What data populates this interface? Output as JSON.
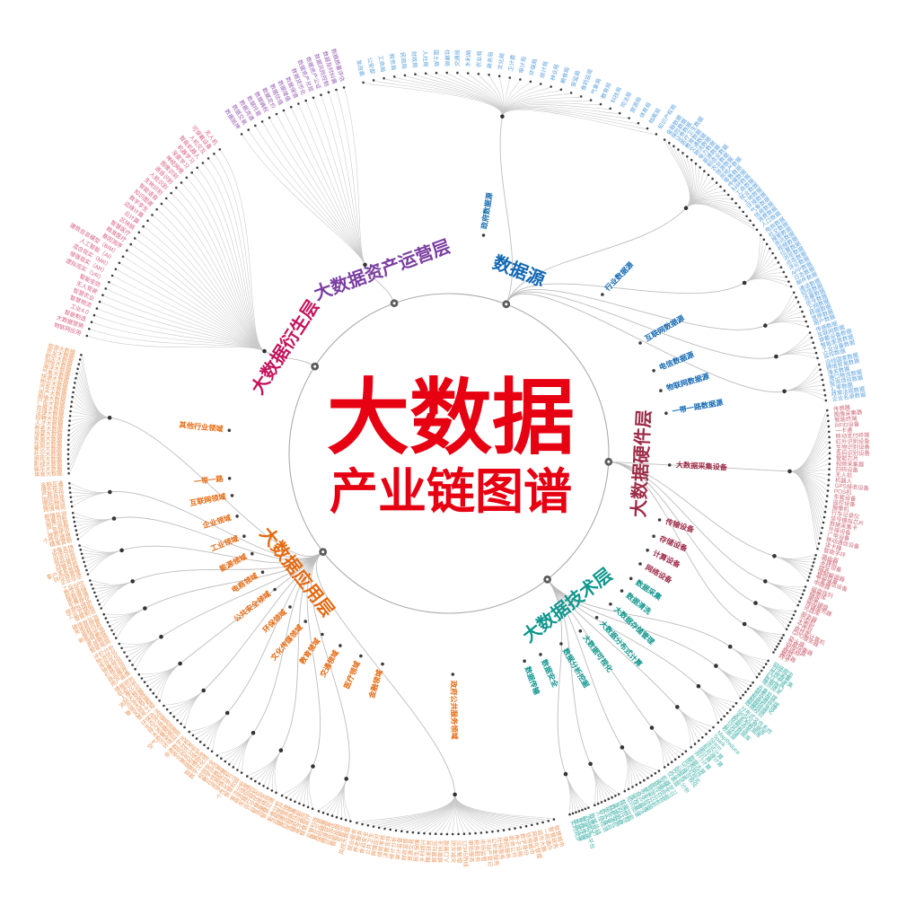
{
  "title": {
    "line1": "大数据",
    "line2": "产业链图谱",
    "color": "#e60012"
  },
  "colors": {
    "link": "#c9c9c9",
    "branch_link": "#bdbdbd",
    "dot": "#3d3d3d",
    "circle": "#ababab",
    "node": "#5c5c5c"
  },
  "branches": [
    {
      "label": "数据源",
      "color": "#1268b3",
      "leaf_color": "#5da2de",
      "node_angle": -69,
      "children": [
        {
          "label": "政府数据源",
          "angle": -81,
          "span": [
            -103,
            -57
          ],
          "leaves": [
            "发改委",
            "公安部",
            "工商局",
            "税务局",
            "民政局",
            "财政局",
            "人社局",
            "国土局",
            "住建局",
            "交通局",
            "水利局",
            "农业局",
            "商务局",
            "文化局",
            "卫计委",
            "审计局",
            "环保局",
            "统计局",
            "林业局",
            "粮食局",
            "安监局",
            "食药监局",
            "气象局",
            "教育局",
            "科技局",
            "司法局",
            "旅游局",
            "体育局",
            "档案局",
            "知识产权局"
          ]
        },
        {
          "label": "行业数据源",
          "angle": -46,
          "span": [
            -55.5,
            -36
          ],
          "leaves": [
            "金融数据",
            "保险数据",
            "证券数据",
            "医疗卫生数据",
            "教育数据",
            "交通数据",
            "物流数据",
            "电力数据",
            "能源数据",
            "制造业数据",
            "农业数据",
            "旅游数据",
            "房地产数据",
            "零售数据",
            "传媒数据",
            "科研数据",
            "工商数据",
            "就业数据",
            "土地数据",
            "环境数据",
            "气象数据",
            "信用数据",
            "消费数据",
            "人口数据"
          ]
        },
        {
          "label": "互联网数据源",
          "angle": -30,
          "span": [
            -35,
            -26
          ],
          "leaves": [
            "电商数据",
            "社交数据",
            "搜索数据",
            "资讯数据",
            "视频数据",
            "位置数据",
            "浏览数据",
            "点击数据",
            "评论数据",
            "APP数据",
            "日志数据",
            "邮件数据"
          ]
        },
        {
          "label": "电信数据源",
          "angle": -22,
          "span": [
            -25,
            -19.5
          ],
          "leaves": [
            "通话数据",
            "短信数据",
            "流量数据",
            "信令数据",
            "上网数据",
            "终端数据",
            "宽带数据",
            "用户数据"
          ]
        },
        {
          "label": "物联网数据源",
          "angle": -16.5,
          "span": [
            -18.5,
            -14.5
          ],
          "leaves": [
            "传感数据",
            "车联网数据",
            "穿戴设备数据",
            "智能家居数据",
            "工业设备数据",
            "监控数据"
          ]
        },
        {
          "label": "一带一路数据源",
          "angle": -10.5,
          "span": [
            -13.5,
            -8
          ],
          "leaves": [
            "沿线国家数据",
            "跨境贸易数据",
            "海关数据",
            "港口物流数据",
            "投资项目数据",
            "汇率数据",
            "政策法规数据",
            "企业名录数据"
          ]
        }
      ]
    },
    {
      "label": "大数据硬件层",
      "color": "#9e2b47",
      "leaf_color": "#cf6a78",
      "node_angle": 3,
      "children": [
        {
          "label": "大数据采集设备",
          "angle": 3,
          "span": [
            -6.5,
            14.5
          ],
          "leaves": [
            "传感器",
            "图像采集器",
            "智能终端",
            "RFID设备",
            "一卡通",
            "移动支付终端",
            "红外识别设备",
            "生物识别设备",
            "条码识别设备",
            "智能芯片",
            "视频采集器",
            "扫码设备",
            "无人机",
            "机器人",
            "GPS接收设备",
            "POS机",
            "车载设备",
            "监控设备",
            "摄像机",
            "行车记录仪",
            "信号模拟芯片",
            "数据采集卡",
            "外接设备",
            "广电设备",
            "移动通信设备",
            "读卡器",
            "智能手环"
          ]
        },
        {
          "label": "传输设备",
          "angle": 17.5,
          "span": [
            15.5,
            19.5
          ],
          "leaves": [
            "路由器",
            "交换机",
            "光纤设备",
            "网关",
            "调制解调器",
            "基站设备",
            "卫星通信设备",
            "中继器"
          ]
        },
        {
          "label": "存储设备",
          "angle": 22,
          "span": [
            20.5,
            23.5
          ],
          "leaves": [
            "磁盘阵列",
            "磁带库",
            "硬盘",
            "固态硬盘",
            "存储服务器",
            "光盘库"
          ]
        },
        {
          "label": "计算设备",
          "angle": 26,
          "span": [
            24.5,
            27.5
          ],
          "leaves": [
            "服务器",
            "小型机",
            "大型机",
            "工作站",
            "高性能计算机",
            "GPU服务器"
          ]
        },
        {
          "label": "网络设备",
          "angle": 30,
          "span": [
            28.5,
            31.5
          ],
          "leaves": [
            "防火墙",
            "负载均衡器",
            "VPN设备",
            "无线AP",
            "网桥",
            "集线器",
            "网卡"
          ]
        }
      ]
    },
    {
      "label": "大数据技术层",
      "color": "#0f968d",
      "leaf_color": "#4ab5ac",
      "node_angle": 52,
      "children": [
        {
          "label": "数据采集",
          "angle": 34.5,
          "span": [
            33,
            36
          ],
          "leaves": [
            "网络爬虫",
            "日志采集",
            "传感器采集",
            "ETL工具",
            "数据接口",
            "埋点技术"
          ]
        },
        {
          "label": "数据清洗",
          "angle": 38.5,
          "span": [
            37,
            40
          ],
          "leaves": [
            "去重处理",
            "缺失值处理",
            "异常值处理",
            "数据标准化",
            "数据转换",
            "数据校验"
          ]
        },
        {
          "label": "大数据存储管理",
          "angle": 43,
          "span": [
            41,
            45
          ],
          "leaves": [
            "分布式文件系统",
            "NoSQL数据库",
            "关系型数据库",
            "数据仓库",
            "内存数据库",
            "云存储",
            "数据湖"
          ]
        },
        {
          "label": "大数据分布式计算",
          "angle": 48,
          "span": [
            46,
            50.5
          ],
          "leaves": [
            "MapReduce",
            "Spark",
            "Storm",
            "流式计算",
            "批处理计算",
            "图计算",
            "并行计算"
          ]
        },
        {
          "label": "大数据可视化",
          "angle": 53.5,
          "span": [
            51.5,
            55.5
          ],
          "leaves": [
            "数据大屏",
            "图表组件",
            "GIS可视化",
            "三维可视化",
            "BI报表",
            "交互式分析",
            "仪表盘"
          ]
        },
        {
          "label": "数据分析挖掘",
          "angle": 59.5,
          "span": [
            56.5,
            62.5
          ],
          "leaves": [
            "机器学习",
            "深度学习",
            "数据挖掘",
            "统计分析",
            "预测分析",
            "聚类分析",
            "文本挖掘",
            "用户画像",
            "推荐算法",
            "知识图谱"
          ]
        },
        {
          "label": "数据安全",
          "angle": 65.5,
          "span": [
            63.5,
            67.5
          ],
          "leaves": [
            "数据加密",
            "访问控制",
            "身份认证",
            "数据脱敏",
            "隐私保护",
            "安全审计",
            "容灾备份",
            "入侵检测"
          ]
        },
        {
          "label": "数据传输",
          "angle": 70,
          "span": [
            68.5,
            71.5
          ],
          "leaves": [
            "数据总线",
            "消息队列",
            "API网关",
            "数据交换平台",
            "专线传输",
            "数据压缩",
            "实时同步"
          ]
        }
      ]
    },
    {
      "label": "大数据应用层",
      "color": "#e56910",
      "leaf_color": "#eb9a62",
      "node_angle": 142,
      "children": [
        {
          "label": "政府公共服务领域",
          "angle": 89,
          "span": [
            74,
            104
          ],
          "leaves": [
            "智慧城市",
            "智慧政务",
            "一网通办",
            "城市大脑",
            "网格化管理",
            "信用城市",
            "数字身份",
            "电子证照",
            "政务公开",
            "便民服务",
            "社保服务",
            "公积金服务",
            "不动产登记",
            "市场监管",
            "税务服务",
            "审批服务",
            "12345热线",
            "应急管理",
            "防灾减灾",
            "人口管理",
            "城管执法",
            "智慧社区",
            "精准扶贫",
            "乡村振兴",
            "民生保障",
            "资源交易",
            "财政监管",
            "审计监督",
            "统计分析",
            "决策支持",
            "绩效考核",
            "舆情应对",
            "公共卫生",
            "食品安全",
            "养老服务",
            "就业服务"
          ]
        },
        {
          "label": "金融领域",
          "angle": 107.5,
          "span": [
            105,
            110
          ],
          "leaves": [
            "风控大数据",
            "反欺诈",
            "智能投顾",
            "征信评估",
            "精准获客",
            "保险精算",
            "量化交易",
            "监管科技"
          ]
        },
        {
          "label": "医疗领域",
          "angle": 113.5,
          "span": [
            111,
            116
          ],
          "leaves": [
            "智慧医疗",
            "电子病历",
            "辅助诊断",
            "医保控费",
            "药品监管",
            "健康管理",
            "远程医疗",
            "影像分析"
          ]
        },
        {
          "label": "交通领域",
          "angle": 119.5,
          "span": [
            117,
            122
          ],
          "leaves": [
            "智慧交通",
            "流量预测",
            "智慧停车",
            "公交优化",
            "出行规划",
            "车路协同",
            "物流调度",
            "客流分析"
          ]
        },
        {
          "label": "教育领域",
          "angle": 125,
          "span": [
            123,
            127.5
          ],
          "leaves": [
            "智慧校园",
            "个性化学习",
            "学情分析",
            "资源配置",
            "在线教育",
            "教学评估",
            "校园安全"
          ]
        },
        {
          "label": "文化传媒领域",
          "angle": 130.5,
          "span": [
            128.5,
            133
          ],
          "leaves": [
            "数字文化馆",
            "智慧博物馆",
            "版权保护",
            "票务分析",
            "文创开发",
            "收视分析",
            "非遗数字化"
          ]
        },
        {
          "label": "环保领域",
          "angle": 136,
          "span": [
            134,
            138.5
          ],
          "leaves": [
            "环境监测",
            "污染溯源",
            "空气质量预测",
            "水质监测",
            "排污监管",
            "生态评估",
            "环保执法"
          ]
        },
        {
          "label": "公共安全领域",
          "angle": 142,
          "span": [
            139.5,
            144.5
          ],
          "leaves": [
            "雪亮工程",
            "天网工程",
            "警务大数据",
            "应急指挥",
            "消防大数据",
            "人像比对",
            "轨迹分析",
            "情报研判"
          ]
        },
        {
          "label": "电商领域",
          "angle": 147.5,
          "span": [
            145.5,
            150
          ],
          "leaves": [
            "用户画像",
            "商品推荐",
            "价格监测",
            "销量预测",
            "库存优化",
            "物流优化",
            "评价分析"
          ]
        },
        {
          "label": "能源领域",
          "angle": 153,
          "span": [
            151,
            155
          ],
          "leaves": [
            "智能电网",
            "负荷预测",
            "油气勘探",
            "新能源监测",
            "能耗分析",
            "充电桩运营",
            "碳排放监测"
          ]
        },
        {
          "label": "工业领域",
          "angle": 158,
          "span": [
            156,
            160.5
          ],
          "leaves": [
            "智能制造",
            "工业互联网",
            "预测性维护",
            "生产优化",
            "质量追溯",
            "能耗管理",
            "数字车间",
            "工业APP"
          ]
        },
        {
          "label": "企业领域",
          "angle": 163.5,
          "span": [
            161.5,
            166
          ],
          "leaves": [
            "企业征信",
            "供应链管理",
            "客户关系管理",
            "经营分析",
            "风险管控",
            "财务分析",
            "市场分析",
            "决策支持"
          ]
        },
        {
          "label": "互联网领域",
          "angle": 169,
          "span": [
            167,
            171
          ],
          "leaves": [
            "精准营销",
            "个性化推荐",
            "搜索优化",
            "广告投放",
            "用户运营",
            "流量分析",
            "舆情监测"
          ]
        },
        {
          "label": "一带一路",
          "angle": 173.5,
          "span": [
            172,
            175.5
          ],
          "leaves": [
            "跨境电商",
            "国际物流",
            "国际贸易",
            "产能合作",
            "境外投资",
            "金融互通"
          ]
        },
        {
          "label": "其他行业领域",
          "angle": 186,
          "span": [
            177,
            195
          ],
          "leaves": [
            "体育大数据",
            "娱乐大数据",
            "影视大数据",
            "游戏大数据",
            "社交大数据",
            "餐饮大数据",
            "住宿大数据",
            "家居大数据",
            "母婴大数据",
            "养老大数据",
            "人才大数据",
            "招聘大数据",
            "法律大数据",
            "会展大数据",
            "广告大数据",
            "舆情大数据",
            "房产大数据",
            "汽车大数据",
            "物业大数据",
            "快递大数据",
            "气象大数据",
            "海洋大数据",
            "测绘大数据",
            "航空大数据",
            "农业大数据",
            "旅游大数据"
          ]
        }
      ]
    },
    {
      "label": "大数据衍生层",
      "color": "#c4135c",
      "leaf_color": "#d95f85",
      "node_angle": 213,
      "direct": {
        "vertex_angle": 209,
        "vertex_r": 235,
        "span": [
          198,
          233
        ],
        "leaves": [
          "物联网应用",
          "大数据营销",
          "智能制造",
          "工业4.0",
          "智慧物流",
          "智慧农业",
          "无人驾驶",
          "智能安防",
          "虚拟现实（VR）",
          "增强现实（AR）",
          "混合现实（MR）",
          "人工智能（AI）",
          "建筑信息模型（BIM）",
          "基因测序",
          "精准医疗",
          "智慧医疗",
          "区块链",
          "云计算",
          "边缘计算",
          "数字孪生",
          "知识图谱",
          "智能语音",
          "生物识别",
          "人脸识别",
          "语音识别",
          "图像识别",
          "神经网络",
          "深度学习",
          "机器学习",
          "智能机器人",
          "人机交互",
          "可穿戴设备",
          "无人机"
        ]
      }
    },
    {
      "label": "大数据资产运营层",
      "color": "#7b3fa0",
      "leaf_color": "#9a5fb5",
      "node_angle": -110,
      "direct": {
        "vertex_angle": -114,
        "vertex_r": 230,
        "span": [
          -123,
          -106
        ],
        "leaves": [
          "数据抵押",
          "数据交易",
          "数据流通",
          "数据托管",
          "数据确权",
          "数据定价",
          "数据估值",
          "数据增值",
          "数据保值",
          "数据货币化",
          "数据资产兑现",
          "数据资产公证",
          "数据风险控制",
          "数据及时纠偏",
          "数据质量评估"
        ]
      }
    }
  ]
}
